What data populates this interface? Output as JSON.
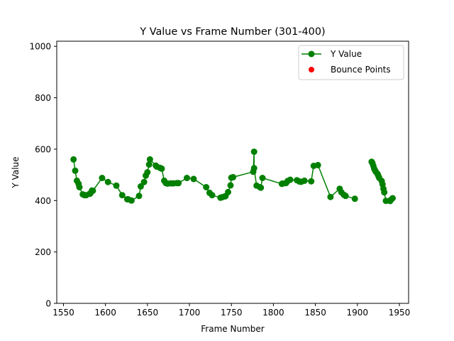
{
  "chart_data": {
    "type": "line",
    "title": "Y Value vs Frame Number (301-400)",
    "xlabel": "Frame Number",
    "ylabel": "Y Value",
    "xlim": [
      1542,
      1961
    ],
    "ylim": [
      0,
      1020
    ],
    "xticks": [
      1550,
      1600,
      1650,
      1700,
      1750,
      1800,
      1850,
      1900,
      1950
    ],
    "yticks": [
      0,
      200,
      400,
      600,
      800,
      1000
    ],
    "grid": false,
    "legend_position": "upper right",
    "colors": {
      "line": "#008000",
      "bounce": "#ff0000"
    },
    "series": [
      {
        "name": "Y Value",
        "style": "line-marker",
        "segments": [
          [
            [
              1562,
              560
            ],
            [
              1564,
              516
            ],
            [
              1566,
              477
            ],
            [
              1568,
              465
            ],
            [
              1569,
              452
            ],
            [
              1573,
              424
            ],
            [
              1575,
              421
            ],
            [
              1577,
              421
            ],
            [
              1581,
              426
            ],
            [
              1582,
              428
            ],
            [
              1584,
              439
            ],
            [
              1585,
              438
            ],
            [
              1596,
              488
            ],
            [
              1603,
              472
            ],
            [
              1613,
              458
            ],
            [
              1620,
              421
            ],
            [
              1626,
              405
            ],
            [
              1627,
              405
            ],
            [
              1631,
              400
            ],
            [
              1640,
              418
            ],
            [
              1642,
              455
            ],
            [
              1646,
              472
            ],
            [
              1648,
              497
            ],
            [
              1650,
              510
            ],
            [
              1652,
              540
            ],
            [
              1653,
              560
            ],
            [
              1660,
              536
            ],
            [
              1661,
              532
            ],
            [
              1665,
              527
            ],
            [
              1667,
              524
            ],
            [
              1670,
              477
            ],
            [
              1672,
              468
            ],
            [
              1674,
              466
            ],
            [
              1678,
              467
            ],
            [
              1681,
              467
            ],
            [
              1685,
              468
            ],
            [
              1687,
              468
            ],
            [
              1697,
              488
            ],
            [
              1705,
              484
            ],
            [
              1720,
              452
            ],
            [
              1724,
              430
            ],
            [
              1727,
              421
            ],
            [
              1737,
              411
            ],
            [
              1739,
              413
            ],
            [
              1742,
              416
            ],
            [
              1743,
              417
            ],
            [
              1746,
              433
            ],
            [
              1749,
              459
            ],
            [
              1750,
              489
            ],
            [
              1752,
              491
            ],
            [
              1776,
              512
            ],
            [
              1777,
              590
            ],
            [
              1777,
              526
            ],
            [
              1780,
              458
            ],
            [
              1784,
              452
            ],
            [
              1785,
              450
            ],
            [
              1787,
              488
            ],
            [
              1810,
              465
            ],
            [
              1811,
              466
            ],
            [
              1815,
              468
            ],
            [
              1817,
              476
            ],
            [
              1820,
              481
            ],
            [
              1828,
              479
            ],
            [
              1831,
              474
            ],
            [
              1833,
              473
            ],
            [
              1837,
              477
            ],
            [
              1845,
              475
            ],
            [
              1848,
              535
            ],
            [
              1853,
              538
            ],
            [
              1868,
              414
            ],
            [
              1879,
              446
            ],
            [
              1881,
              432
            ],
            [
              1884,
              422
            ],
            [
              1886,
              418
            ],
            [
              1897,
              407
            ]
          ],
          [
            [
              1917,
              551
            ],
            [
              1918,
              545
            ],
            [
              1919,
              535
            ],
            [
              1920,
              524
            ],
            [
              1921,
              518
            ],
            [
              1922,
              512
            ],
            [
              1924,
              504
            ],
            [
              1925,
              496
            ],
            [
              1926,
              488
            ],
            [
              1929,
              476
            ],
            [
              1930,
              463
            ],
            [
              1931,
              446
            ],
            [
              1932,
              432
            ],
            [
              1934,
              399
            ],
            [
              1939,
              398
            ],
            [
              1940,
              403
            ],
            [
              1942,
              409
            ]
          ]
        ]
      },
      {
        "name": "Bounce Points",
        "style": "scatter",
        "points": []
      }
    ]
  }
}
